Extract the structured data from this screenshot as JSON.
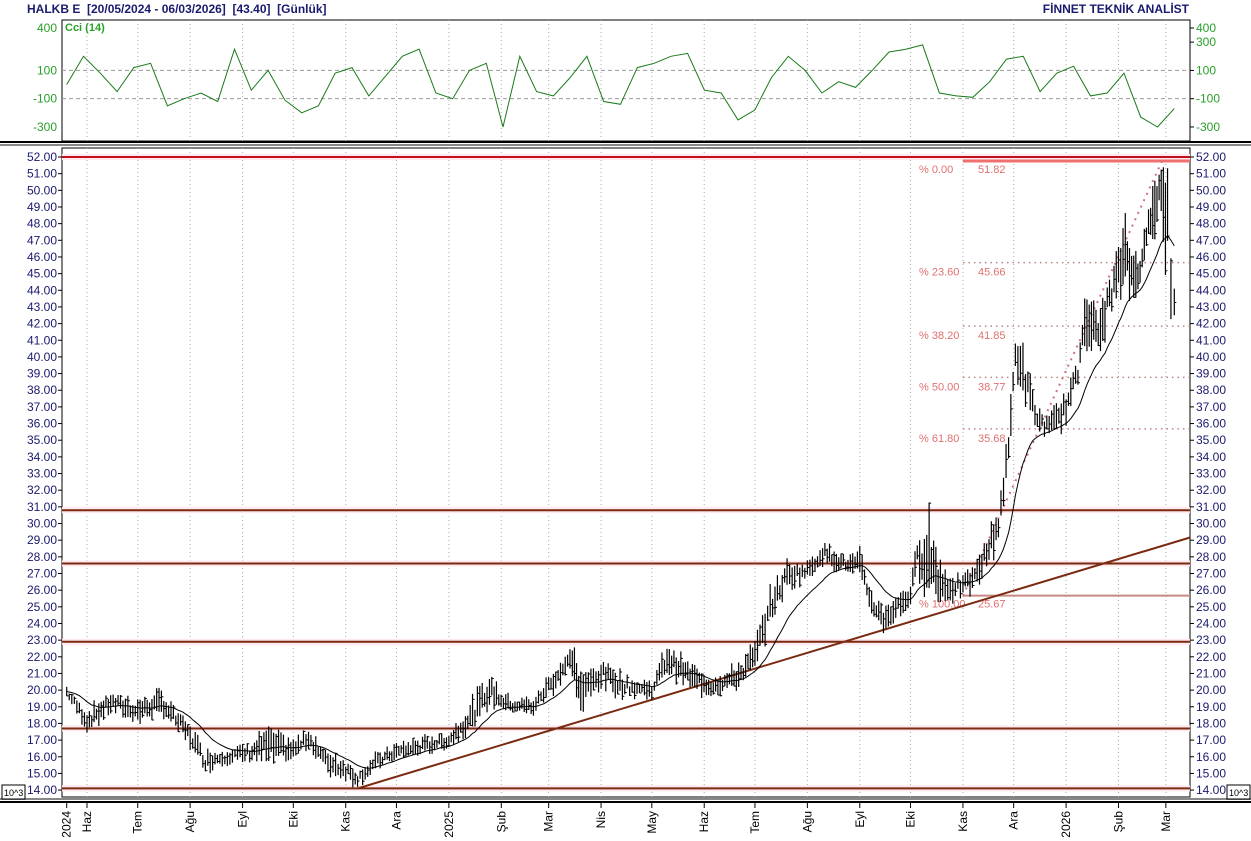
{
  "header": {
    "symbol": "HALKB E",
    "range": "[20/05/2024 - 06/03/2026]",
    "last": "[43.40]",
    "period": "[Günlük]",
    "brand": "FİNNET TEKNİK ANALİST"
  },
  "colors": {
    "price": "#000000",
    "cci": "#1a7a1a",
    "support": "#7a2a10",
    "resistance_top": "#c0101a",
    "fib": "#e07070",
    "axis_text": "#1a1a6e",
    "cci_text": "#2aa02a"
  },
  "chart_data": [
    {
      "type": "bar",
      "subtype": "ohlc-high-low",
      "title": "HALKB E",
      "ylim": [
        14,
        52
      ],
      "price_ticks": [
        "52.00",
        "51.00",
        "50.00",
        "49.00",
        "48.00",
        "47.00",
        "46.00",
        "45.00",
        "44.00",
        "43.00",
        "42.00",
        "41.00",
        "40.00",
        "39.00",
        "38.00",
        "37.00",
        "36.00",
        "35.00",
        "34.00",
        "33.00",
        "32.00",
        "31.00",
        "30.00",
        "29.00",
        "28.00",
        "27.00",
        "26.00",
        "25.00",
        "24.00",
        "23.00",
        "22.00",
        "21.00",
        "20.00",
        "19.00",
        "18.00",
        "17.00",
        "16.00",
        "15.00",
        "14.00"
      ],
      "scale_badge": "10^3",
      "x_ticks": [
        {
          "date": "2024-05-20",
          "label": "2024"
        },
        {
          "date": "2024-06-01",
          "label": "Haz"
        },
        {
          "date": "2024-07-01",
          "label": "Tem"
        },
        {
          "date": "2024-08-01",
          "label": "Ağu"
        },
        {
          "date": "2024-09-01",
          "label": "Eyl"
        },
        {
          "date": "2024-10-01",
          "label": "Eki"
        },
        {
          "date": "2024-11-01",
          "label": "Kas"
        },
        {
          "date": "2024-12-01",
          "label": "Ara"
        },
        {
          "date": "2025-01-01",
          "label": "2025"
        },
        {
          "date": "2025-02-01",
          "label": "Şub"
        },
        {
          "date": "2025-03-01",
          "label": "Mar"
        },
        {
          "date": "2025-04-01",
          "label": "Nis"
        },
        {
          "date": "2025-05-01",
          "label": "May"
        },
        {
          "date": "2025-06-01",
          "label": "Haz"
        },
        {
          "date": "2025-07-01",
          "label": "Tem"
        },
        {
          "date": "2025-08-01",
          "label": "Ağu"
        },
        {
          "date": "2025-09-01",
          "label": "Eyl"
        },
        {
          "date": "2025-10-01",
          "label": "Eki"
        },
        {
          "date": "2025-11-01",
          "label": "Kas"
        },
        {
          "date": "2025-12-01",
          "label": "Ara"
        },
        {
          "date": "2026-01-01",
          "label": "2026"
        },
        {
          "date": "2026-02-01",
          "label": "Şub"
        },
        {
          "date": "2026-03-01",
          "label": "Mar"
        }
      ],
      "grid": true,
      "series": [
        {
          "name": "HALKB E",
          "points": [
            [
              "2024-05-20",
              19.5,
              20.3
            ],
            [
              "2024-06-01",
              17.5,
              18.8
            ],
            [
              "2024-06-15",
              18.5,
              20.0
            ],
            [
              "2024-07-01",
              18.0,
              19.5
            ],
            [
              "2024-07-15",
              18.5,
              20.0
            ],
            [
              "2024-08-01",
              16.5,
              18.0
            ],
            [
              "2024-08-10",
              15.0,
              16.5
            ],
            [
              "2024-08-20",
              15.5,
              16.5
            ],
            [
              "2024-09-01",
              15.5,
              16.8
            ],
            [
              "2024-09-15",
              15.5,
              17.8
            ],
            [
              "2024-10-01",
              15.8,
              17.0
            ],
            [
              "2024-10-10",
              16.5,
              17.8
            ],
            [
              "2024-10-20",
              15.0,
              16.5
            ],
            [
              "2024-11-01",
              14.5,
              16.0
            ],
            [
              "2024-11-08",
              14.2,
              15.2
            ],
            [
              "2024-11-20",
              15.2,
              16.3
            ],
            [
              "2024-12-01",
              15.8,
              16.8
            ],
            [
              "2024-12-15",
              16.0,
              17.2
            ],
            [
              "2025-01-01",
              16.5,
              17.5
            ],
            [
              "2025-01-15",
              17.5,
              19.5
            ],
            [
              "2025-01-25",
              19.0,
              21.0
            ],
            [
              "2025-02-05",
              18.5,
              19.8
            ],
            [
              "2025-02-20",
              18.5,
              19.5
            ],
            [
              "2025-03-01",
              19.5,
              21.0
            ],
            [
              "2025-03-15",
              21.0,
              22.8
            ],
            [
              "2025-03-20",
              18.5,
              21.0
            ],
            [
              "2025-04-01",
              20.0,
              22.0
            ],
            [
              "2025-04-15",
              19.5,
              21.0
            ],
            [
              "2025-05-01",
              19.5,
              20.5
            ],
            [
              "2025-05-10",
              21.0,
              22.8
            ],
            [
              "2025-05-25",
              20.0,
              21.5
            ],
            [
              "2025-06-05",
              19.5,
              21.0
            ],
            [
              "2025-06-20",
              20.0,
              21.5
            ],
            [
              "2025-07-01",
              21.0,
              23.0
            ],
            [
              "2025-07-10",
              24.0,
              26.0
            ],
            [
              "2025-07-20",
              26.0,
              27.8
            ],
            [
              "2025-08-01",
              26.5,
              27.8
            ],
            [
              "2025-08-10",
              27.5,
              29.0
            ],
            [
              "2025-08-25",
              27.0,
              28.0
            ],
            [
              "2025-09-01",
              26.5,
              28.5
            ],
            [
              "2025-09-08",
              24.5,
              26.0
            ],
            [
              "2025-09-15",
              23.5,
              25.0
            ],
            [
              "2025-10-01",
              25.0,
              26.5
            ],
            [
              "2025-10-05",
              27.0,
              29.0
            ],
            [
              "2025-10-12",
              25.5,
              30.8
            ],
            [
              "2025-10-20",
              25.0,
              27.5
            ],
            [
              "2025-11-01",
              25.5,
              27.0
            ],
            [
              "2025-11-08",
              26.0,
              27.5
            ],
            [
              "2025-11-15",
              27.0,
              29.5
            ],
            [
              "2025-11-22",
              29.0,
              31.0
            ],
            [
              "2025-11-28",
              33.0,
              35.8
            ],
            [
              "2025-12-02",
              39.0,
              41.8
            ],
            [
              "2025-12-08",
              37.0,
              40.0
            ],
            [
              "2025-12-15",
              35.5,
              37.0
            ],
            [
              "2025-12-22",
              35.0,
              36.5
            ],
            [
              "2026-01-01",
              36.0,
              38.0
            ],
            [
              "2026-01-08",
              38.0,
              40.0
            ],
            [
              "2026-01-12",
              41.0,
              44.5
            ],
            [
              "2026-01-20",
              40.0,
              42.5
            ],
            [
              "2026-01-28",
              42.5,
              45.5
            ],
            [
              "2026-02-05",
              44.0,
              48.0
            ],
            [
              "2026-02-10",
              43.0,
              46.5
            ],
            [
              "2026-02-15",
              45.0,
              46.5
            ],
            [
              "2026-02-20",
              47.0,
              50.5
            ],
            [
              "2026-02-25",
              48.0,
              51.8
            ],
            [
              "2026-03-02",
              45.0,
              51.3
            ],
            [
              "2026-03-04",
              42.3,
              46.0
            ],
            [
              "2026-03-06",
              42.5,
              44.1
            ]
          ]
        }
      ],
      "horizontal_levels": [
        52.0,
        30.8,
        27.6,
        22.9,
        17.7,
        14.1
      ],
      "trendline": {
        "from": [
          "2024-11-08",
          14.1
        ],
        "to": [
          "2026-03-10",
          29.0
        ]
      },
      "fibonacci": {
        "from_date": "2025-11-01",
        "levels": [
          {
            "pct": "% 0.00",
            "value": "51.82",
            "v": 51.82
          },
          {
            "pct": "% 23.60",
            "value": "45.66",
            "v": 45.66
          },
          {
            "pct": "% 38.20",
            "value": "41.85",
            "v": 41.85
          },
          {
            "pct": "% 50.00",
            "value": "38.77",
            "v": 38.77
          },
          {
            "pct": "% 61.80",
            "value": "35.68",
            "v": 35.68
          },
          {
            "pct": "% 100.00",
            "value": "25.67",
            "v": 25.67
          }
        ]
      }
    },
    {
      "type": "line",
      "title": "Cci (14)",
      "ylim": [
        -380,
        420
      ],
      "left_ticks": [
        "400",
        "100",
        "-100",
        "-300"
      ],
      "right_ticks": [
        "400",
        "300",
        "100",
        "-100",
        "-300"
      ],
      "tick_values": [
        400,
        300,
        100,
        -100,
        -300
      ],
      "reference_lines": [
        100,
        -100
      ],
      "values": [
        0,
        200,
        80,
        -50,
        120,
        150,
        -150,
        -100,
        -60,
        -120,
        250,
        -40,
        100,
        -110,
        -200,
        -150,
        80,
        120,
        -80,
        60,
        200,
        250,
        -60,
        -100,
        100,
        150,
        -300,
        200,
        -50,
        -80,
        50,
        200,
        -120,
        -140,
        120,
        150,
        200,
        220,
        -40,
        -60,
        -250,
        -180,
        50,
        200,
        100,
        -60,
        20,
        -20,
        100,
        230,
        250,
        280,
        -60,
        -80,
        -90,
        20,
        180,
        200,
        -50,
        80,
        130,
        -80,
        -60,
        80,
        -230,
        -300,
        -170
      ]
    }
  ]
}
